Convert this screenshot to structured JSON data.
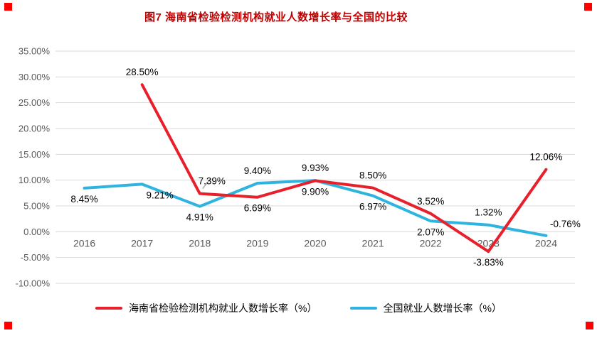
{
  "title": "图7 海南省检验检测机构就业人数增长率与全国的比较",
  "colors": {
    "hainan": "#e8202c",
    "national": "#2fb4e0",
    "grid": "#d9d9d9",
    "tick": "#595959",
    "label": "#000000",
    "title": "#c00000",
    "handle": "#ff0000",
    "callout": "#ababab"
  },
  "chart_data": {
    "type": "line",
    "title": "图7 海南省检验检测机构就业人数增长率与全国的比较",
    "categories": [
      "2016",
      "2017",
      "2018",
      "2019",
      "2020",
      "2021",
      "2022",
      "2023",
      "2024"
    ],
    "series": [
      {
        "name": "海南省检验检测机构就业人数增长率（%）",
        "color_key": "hainan",
        "values": [
          null,
          28.5,
          7.39,
          6.69,
          9.9,
          8.5,
          3.52,
          -3.83,
          12.06
        ],
        "labels": [
          "",
          "28.50%",
          "7.39%",
          "6.69%",
          "9.90%",
          "8.50%",
          "3.52%",
          "-3.83%",
          "12.06%"
        ],
        "label_positions": [
          "",
          "above",
          "above-right",
          "below",
          "below",
          "above",
          "above",
          "below",
          "above"
        ]
      },
      {
        "name": "全国就业人数增长率（%）",
        "color_key": "national",
        "values": [
          8.45,
          9.21,
          4.91,
          9.4,
          9.93,
          6.97,
          2.07,
          1.32,
          -0.76
        ],
        "labels": [
          "8.45%",
          "9.21%",
          "4.91%",
          "9.40%",
          "9.93%",
          "6.97%",
          "2.07%",
          "1.32%",
          "-0.76%"
        ],
        "label_positions": [
          "below",
          "below-right",
          "below",
          "above",
          "above",
          "below",
          "below",
          "above",
          "right"
        ]
      }
    ],
    "y_ticks": [
      "35.00%",
      "30.00%",
      "25.00%",
      "20.00%",
      "15.00%",
      "10.00%",
      "5.00%",
      "0.00%",
      "-5.00%",
      "-10.00%"
    ],
    "y_max": 35,
    "y_min": -10,
    "y_step": 5,
    "grid": true,
    "legend_position": "bottom"
  }
}
